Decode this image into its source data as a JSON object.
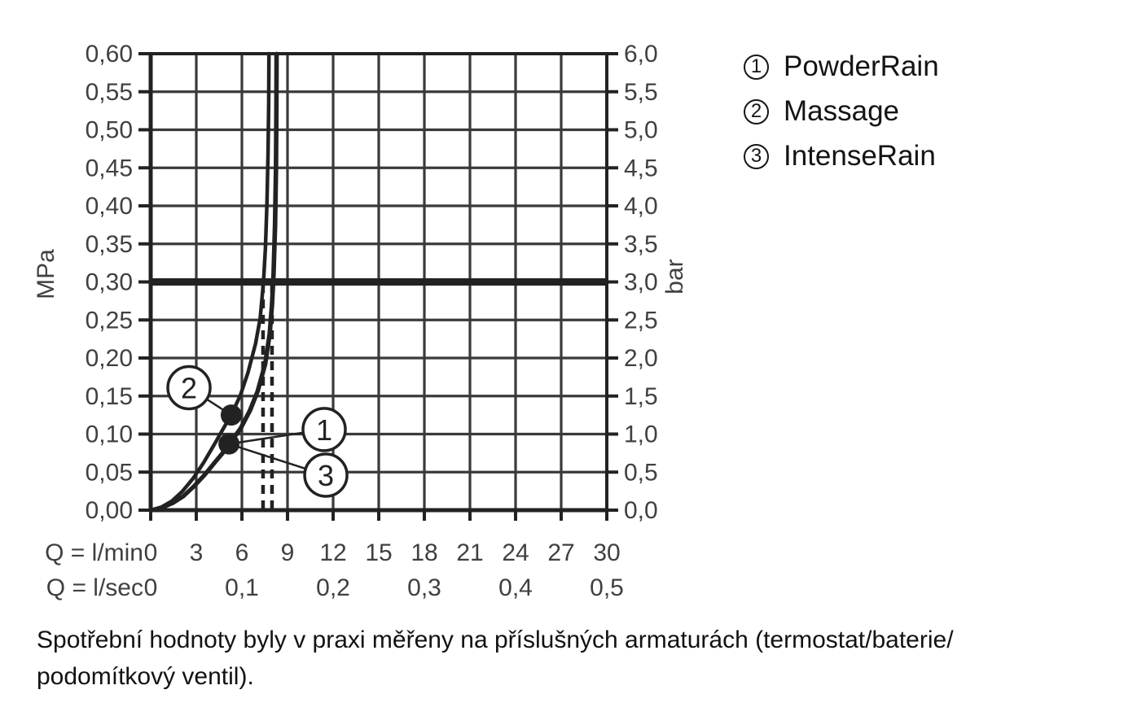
{
  "chart_data": {
    "type": "line",
    "title": "",
    "x_axis": {
      "row1_label": "Q = l/min",
      "row1_ticks": [
        "0",
        "3",
        "6",
        "9",
        "12",
        "15",
        "18",
        "21",
        "24",
        "27",
        "30"
      ],
      "row2_label": "Q = l/sec",
      "row2_ticks": [
        {
          "q": 0,
          "t": "0"
        },
        {
          "q": 6,
          "t": "0,1"
        },
        {
          "q": 12,
          "t": "0,2"
        },
        {
          "q": 18,
          "t": "0,3"
        },
        {
          "q": 24,
          "t": "0,4"
        },
        {
          "q": 30,
          "t": "0,5"
        }
      ],
      "range_lmin": [
        0,
        30
      ],
      "grid_step_lmin": 3
    },
    "y_axis_left": {
      "unit": "MPa",
      "range": [
        0,
        0.6
      ],
      "grid_step": 0.05,
      "ticks": [
        "0,60",
        "0,55",
        "0,50",
        "0,45",
        "0,40",
        "0,35",
        "0,30",
        "0,25",
        "0,20",
        "0,15",
        "0,10",
        "0,05",
        "0,00"
      ]
    },
    "y_axis_right": {
      "unit": "bar",
      "range": [
        0,
        6
      ],
      "ticks": [
        "6,0",
        "5,5",
        "5,0",
        "4,5",
        "4,0",
        "3,5",
        "3,0",
        "2,5",
        "2,0",
        "1,5",
        "1,0",
        "0,5",
        "0,0"
      ]
    },
    "reference_line_mpa": 0.3,
    "dashed_lines_lmin": [
      7.39,
      7.98
    ],
    "series": [
      {
        "id": "2",
        "name": "Massage",
        "points": [
          [
            0,
            0
          ],
          [
            0.7,
            0.004
          ],
          [
            1.4,
            0.012
          ],
          [
            2.1,
            0.025
          ],
          [
            2.8,
            0.042
          ],
          [
            3.5,
            0.063
          ],
          [
            4.2,
            0.087
          ],
          [
            4.8,
            0.108
          ],
          [
            5.3,
            0.125
          ],
          [
            5.9,
            0.151
          ],
          [
            6.4,
            0.181
          ],
          [
            6.9,
            0.219
          ],
          [
            7.2,
            0.252
          ],
          [
            7.42,
            0.3
          ],
          [
            7.55,
            0.345
          ],
          [
            7.65,
            0.405
          ],
          [
            7.72,
            0.47
          ],
          [
            7.76,
            0.535
          ],
          [
            7.78,
            0.6
          ]
        ]
      },
      {
        "id": "1",
        "name": "PowderRain",
        "points": [
          [
            0,
            0
          ],
          [
            0.7,
            0.003
          ],
          [
            1.4,
            0.009
          ],
          [
            2.1,
            0.018
          ],
          [
            2.8,
            0.031
          ],
          [
            3.5,
            0.046
          ],
          [
            4.2,
            0.063
          ],
          [
            4.7,
            0.075
          ],
          [
            5.15,
            0.087
          ],
          [
            5.9,
            0.108
          ],
          [
            6.5,
            0.131
          ],
          [
            7.0,
            0.156
          ],
          [
            7.5,
            0.192
          ],
          [
            7.8,
            0.232
          ],
          [
            7.95,
            0.27
          ],
          [
            8.05,
            0.31
          ],
          [
            8.15,
            0.375
          ],
          [
            8.21,
            0.45
          ],
          [
            8.24,
            0.53
          ],
          [
            8.25,
            0.6
          ]
        ]
      },
      {
        "id": "3",
        "name": "IntenseRain",
        "points": [
          [
            0,
            0
          ],
          [
            0.76,
            0.003
          ],
          [
            1.46,
            0.009
          ],
          [
            2.16,
            0.018
          ],
          [
            2.86,
            0.031
          ],
          [
            3.56,
            0.046
          ],
          [
            4.26,
            0.063
          ],
          [
            4.76,
            0.075
          ],
          [
            5.21,
            0.087
          ],
          [
            5.96,
            0.108
          ],
          [
            6.56,
            0.131
          ],
          [
            7.06,
            0.156
          ],
          [
            7.56,
            0.192
          ],
          [
            7.86,
            0.232
          ],
          [
            8.01,
            0.27
          ],
          [
            8.11,
            0.31
          ],
          [
            8.21,
            0.375
          ],
          [
            8.27,
            0.45
          ],
          [
            8.3,
            0.53
          ],
          [
            8.31,
            0.6
          ]
        ]
      }
    ],
    "markers": [
      {
        "q": 5.3,
        "p": 0.125
      },
      {
        "q": 5.15,
        "p": 0.087
      }
    ],
    "callouts": [
      {
        "label": "2",
        "q": 2.52,
        "p": 0.161,
        "marker": 0
      },
      {
        "label": "1",
        "q": 11.41,
        "p": 0.106,
        "marker": 1
      },
      {
        "label": "3",
        "q": 11.52,
        "p": 0.046,
        "marker": 1
      }
    ],
    "colors": {
      "ink": "#222222",
      "grid": "#3a3a3a",
      "label": "#404040"
    }
  },
  "legend": {
    "items": [
      {
        "num": "1",
        "label": "PowderRain"
      },
      {
        "num": "2",
        "label": "Massage"
      },
      {
        "num": "3",
        "label": "IntenseRain"
      }
    ]
  },
  "caption": {
    "line1": "Spotřební hodnoty byly v praxi měřeny na příslušných armaturách (termostat/baterie/",
    "line2": "podomítkový ventil)."
  }
}
